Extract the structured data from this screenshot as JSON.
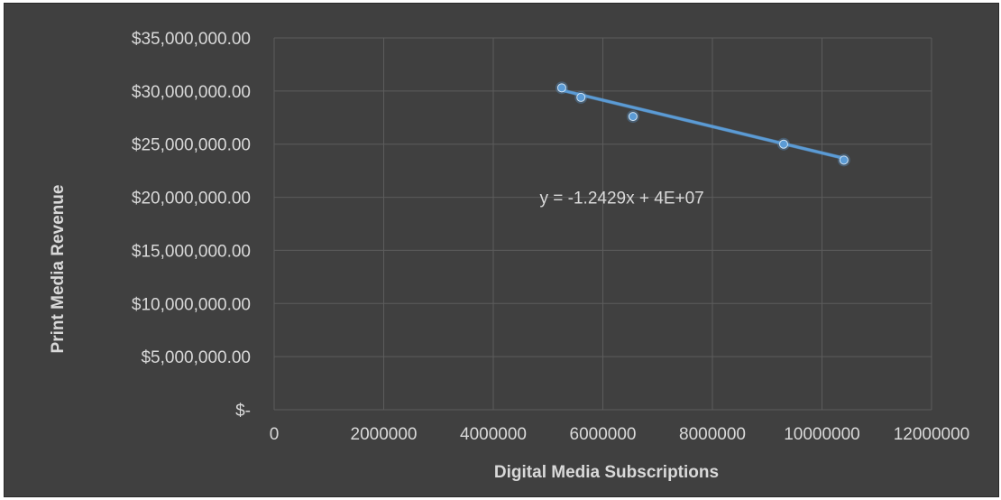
{
  "chart_data": {
    "type": "scatter",
    "title": "",
    "xlabel": "Digital Media Subscriptions",
    "ylabel": "Print Media Revenue",
    "xlim": [
      0,
      12000000
    ],
    "ylim": [
      0,
      35000000
    ],
    "x_ticks": [
      0,
      2000000,
      4000000,
      6000000,
      8000000,
      10000000,
      12000000
    ],
    "x_tick_labels": [
      "0",
      "2000000",
      "4000000",
      "6000000",
      "8000000",
      "10000000",
      "12000000"
    ],
    "y_ticks": [
      0,
      5000000,
      10000000,
      15000000,
      20000000,
      25000000,
      30000000,
      35000000
    ],
    "y_tick_labels": [
      "$-",
      "$5,000,000.00",
      "$10,000,000.00",
      "$15,000,000.00",
      "$20,000,000.00",
      "$25,000,000.00",
      "$30,000,000.00",
      "$35,000,000.00"
    ],
    "grid": true,
    "series": [
      {
        "points": [
          {
            "x": 5250000,
            "y": 30300000
          },
          {
            "x": 5600000,
            "y": 29400000
          },
          {
            "x": 6550000,
            "y": 27600000
          },
          {
            "x": 9300000,
            "y": 25000000
          },
          {
            "x": 10400000,
            "y": 23500000
          }
        ],
        "color": "#5b9bd5"
      }
    ],
    "trendline": {
      "slope": -1.2429,
      "intercept": 36600000,
      "x_range": [
        5250000,
        10400000
      ],
      "color": "#5b9bd5"
    },
    "annotations": [
      {
        "text": "y = -1.2429x + 4E+07",
        "x": 6000000,
        "y": 20000000
      }
    ],
    "colors": {
      "background": "#404040",
      "grid": "#5c5c5c",
      "text": "#d9d9d9",
      "marker": "#5b9bd5"
    }
  }
}
